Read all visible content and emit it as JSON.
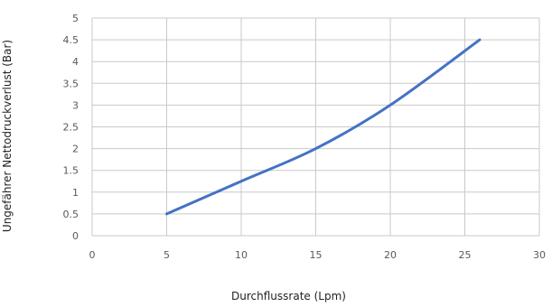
{
  "chart_data": {
    "type": "line",
    "title": "",
    "xlabel": "Durchflussrate (Lpm)",
    "ylabel": "Ungefährer Nettodruckverlust (Bar)",
    "xlim": [
      0,
      30
    ],
    "ylim": [
      0,
      5
    ],
    "x_ticks": [
      0,
      5,
      10,
      15,
      20,
      25,
      30
    ],
    "y_ticks": [
      0,
      0.5,
      1,
      1.5,
      2,
      2.5,
      3,
      3.5,
      4,
      4.5,
      5
    ],
    "x_tick_labels": [
      "0",
      "5",
      "10",
      "15",
      "20",
      "25",
      "30"
    ],
    "y_tick_labels": [
      "0",
      "0.5",
      "1",
      "1.5",
      "2",
      "2.5",
      "3",
      "3.5",
      "4",
      "4.5",
      "5"
    ],
    "grid": true,
    "legend": "none",
    "series": [
      {
        "color": "#4472c4",
        "x": [
          5,
          10,
          15,
          20,
          26
        ],
        "y": [
          0.5,
          1.25,
          2.0,
          3.0,
          4.5
        ]
      }
    ]
  }
}
